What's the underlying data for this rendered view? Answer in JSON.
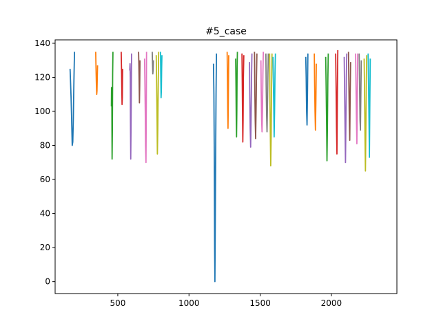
{
  "chart_data": {
    "type": "line",
    "title": "#5_case",
    "xlabel": "",
    "ylabel": "",
    "xlim": [
      60,
      2460
    ],
    "ylim": [
      -7,
      142
    ],
    "xticks": [
      500,
      1000,
      1500,
      2000
    ],
    "xtick_labels": [
      "500",
      "1000",
      "1500",
      "2000"
    ],
    "yticks": [
      0,
      20,
      40,
      60,
      80,
      100,
      120,
      140
    ],
    "ytick_labels": [
      "0",
      "20",
      "40",
      "60",
      "80",
      "100",
      "120",
      "140"
    ],
    "grid": false,
    "legend": "none",
    "color_cycle": [
      "#1f77b4",
      "#ff7f0e",
      "#2ca02c",
      "#d62728",
      "#9467bd",
      "#8c564b",
      "#e377c2",
      "#7f7f7f",
      "#bcbd22",
      "#17becf"
    ],
    "series": [
      {
        "x": [
          165,
          168,
          172,
          176,
          180,
          184,
          188,
          192,
          196
        ],
        "y": [
          125,
          118,
          108,
          95,
          80,
          82,
          96,
          118,
          135
        ]
      },
      {
        "x": [
          345,
          347,
          350,
          352,
          354,
          356,
          358
        ],
        "y": [
          135,
          126,
          115,
          110,
          112,
          120,
          127
        ]
      },
      {
        "x": [
          455,
          456,
          458,
          459,
          460,
          462,
          463,
          464,
          466
        ],
        "y": [
          103,
          114,
          112,
          90,
          72,
          88,
          105,
          122,
          135
        ]
      },
      {
        "x": [
          524,
          525,
          527,
          528,
          530,
          532,
          533,
          534
        ],
        "y": [
          135,
          130,
          122,
          115,
          104,
          108,
          118,
          125
        ]
      },
      {
        "x": [
          584,
          586,
          588,
          589,
          591,
          593,
          595,
          597
        ],
        "y": [
          124,
          128,
          120,
          95,
          72,
          90,
          112,
          134
        ]
      },
      {
        "x": [
          646,
          648,
          650,
          652,
          654,
          656
        ],
        "y": [
          135,
          128,
          118,
          105,
          115,
          130
        ]
      },
      {
        "x": [
          688,
          690,
          693,
          695,
          698,
          700,
          702
        ],
        "y": [
          131,
          120,
          100,
          80,
          70,
          100,
          135
        ]
      },
      {
        "x": [
          742,
          744,
          746,
          748,
          750
        ],
        "y": [
          135,
          128,
          122,
          124,
          130
        ]
      },
      {
        "x": [
          770,
          773,
          776,
          778,
          781,
          784,
          787
        ],
        "y": [
          133,
          115,
          95,
          75,
          90,
          115,
          135
        ]
      },
      {
        "x": [
          800,
          802,
          804,
          806,
          808,
          810
        ],
        "y": [
          135,
          120,
          108,
          112,
          125,
          133
        ]
      },
      {
        "x": [
          1172,
          1175,
          1178,
          1180,
          1182,
          1185,
          1188,
          1190,
          1193
        ],
        "y": [
          128,
          110,
          70,
          20,
          0,
          40,
          85,
          110,
          134
        ]
      },
      {
        "x": [
          1268,
          1270,
          1272,
          1274,
          1276,
          1279
        ],
        "y": [
          135,
          118,
          100,
          90,
          105,
          133
        ]
      },
      {
        "x": [
          1328,
          1330,
          1332,
          1334,
          1336,
          1338,
          1340
        ],
        "y": [
          131,
          115,
          95,
          85,
          100,
          125,
          135
        ]
      },
      {
        "x": [
          1372,
          1374,
          1376,
          1378,
          1380,
          1382,
          1385
        ],
        "y": [
          134,
          118,
          98,
          82,
          95,
          120,
          133
        ]
      },
      {
        "x": [
          1425,
          1427,
          1430,
          1433,
          1436,
          1439,
          1442
        ],
        "y": [
          129,
          110,
          90,
          79,
          95,
          118,
          134
        ]
      },
      {
        "x": [
          1460,
          1462,
          1465,
          1468,
          1471,
          1474,
          1477
        ],
        "y": [
          135,
          115,
          95,
          84,
          100,
          120,
          134
        ]
      },
      {
        "x": [
          1505,
          1507,
          1510,
          1513,
          1516,
          1519,
          1522
        ],
        "y": [
          130,
          112,
          95,
          88,
          100,
          122,
          135
        ]
      },
      {
        "x": [
          1540,
          1542,
          1545,
          1548,
          1551,
          1554,
          1557
        ],
        "y": [
          134,
          115,
          98,
          88,
          102,
          120,
          134
        ]
      },
      {
        "x": [
          1566,
          1568,
          1571,
          1574,
          1577,
          1580,
          1583
        ],
        "y": [
          134,
          110,
          88,
          68,
          85,
          115,
          134
        ]
      },
      {
        "x": [
          1590,
          1592,
          1595,
          1598,
          1601,
          1604,
          1607
        ],
        "y": [
          132,
          120,
          105,
          85,
          100,
          122,
          134
        ]
      },
      {
        "x": [
          1820,
          1823,
          1826,
          1829,
          1832,
          1835
        ],
        "y": [
          132,
          120,
          100,
          92,
          110,
          134
        ]
      },
      {
        "x": [
          1880,
          1882,
          1885,
          1888,
          1891,
          1894
        ],
        "y": [
          134,
          118,
          100,
          89,
          105,
          128
        ]
      },
      {
        "x": [
          1960,
          1963,
          1966,
          1969,
          1972,
          1975,
          1978
        ],
        "y": [
          132,
          115,
          95,
          71,
          90,
          118,
          134
        ]
      },
      {
        "x": [
          2030,
          2033,
          2036,
          2039,
          2042,
          2045
        ],
        "y": [
          134,
          115,
          90,
          75,
          110,
          136
        ]
      },
      {
        "x": [
          2090,
          2093,
          2096,
          2099,
          2102,
          2105,
          2108
        ],
        "y": [
          132,
          110,
          90,
          70,
          95,
          120,
          134
        ]
      },
      {
        "x": [
          2120,
          2123,
          2126,
          2129,
          2132,
          2135
        ],
        "y": [
          135,
          115,
          95,
          83,
          110,
          129
        ]
      },
      {
        "x": [
          2170,
          2173,
          2176,
          2179,
          2182,
          2185
        ],
        "y": [
          134,
          115,
          95,
          81,
          110,
          134
        ]
      },
      {
        "x": [
          2195,
          2198,
          2201,
          2204,
          2207,
          2210
        ],
        "y": [
          134,
          115,
          95,
          89,
          110,
          130
        ]
      },
      {
        "x": [
          2230,
          2233,
          2236,
          2239,
          2242,
          2245,
          2248
        ],
        "y": [
          131,
          110,
          85,
          65,
          90,
          115,
          133
        ]
      },
      {
        "x": [
          2258,
          2261,
          2264,
          2267,
          2270,
          2273
        ],
        "y": [
          134,
          115,
          95,
          73,
          105,
          131
        ]
      }
    ]
  }
}
